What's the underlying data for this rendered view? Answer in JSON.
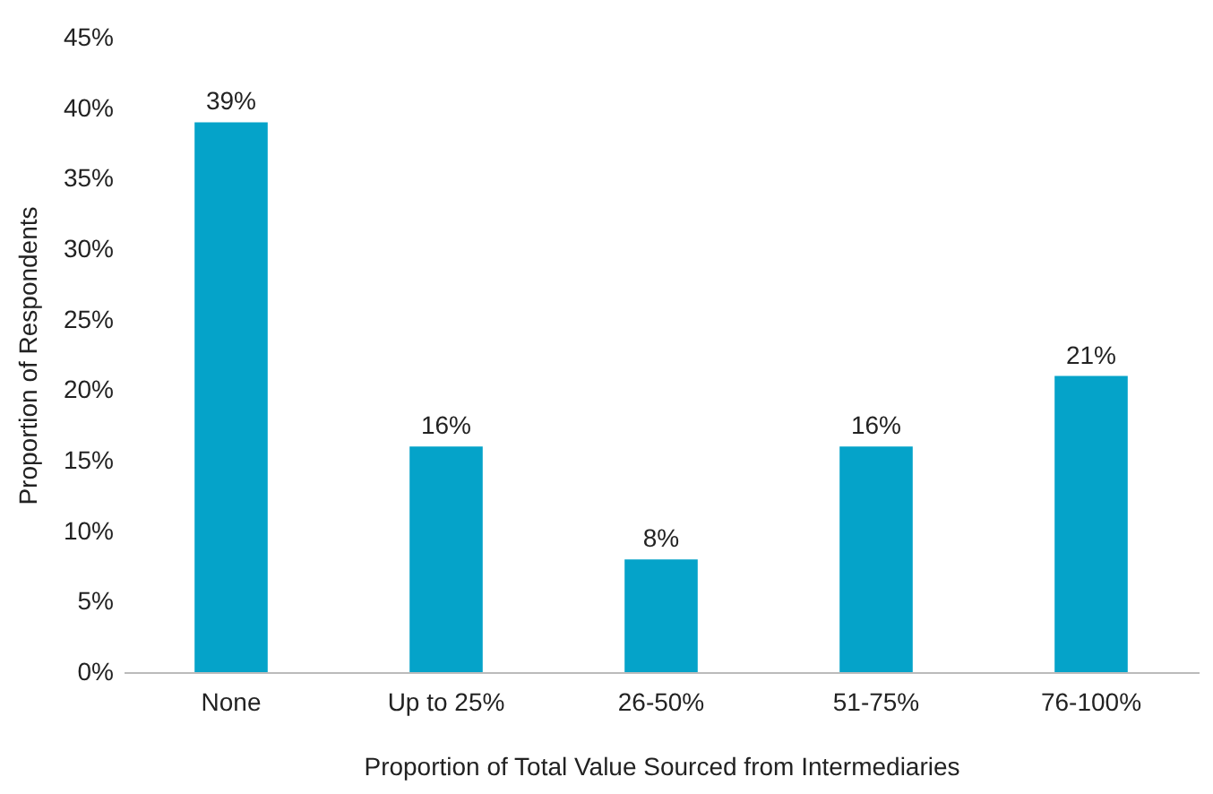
{
  "chart_data": {
    "type": "bar",
    "xlabel": "Proportion of Total Value Sourced from Intermediaries",
    "ylabel": "Proportion of Respondents",
    "categories": [
      "None",
      "Up to 25%",
      "26-50%",
      "51-75%",
      "76-100%"
    ],
    "values": [
      39,
      16,
      8,
      16,
      21
    ],
    "value_labels": [
      "39%",
      "16%",
      "8%",
      "16%",
      "21%"
    ],
    "color": "#05a3c9",
    "ylim": [
      0,
      45
    ],
    "yticks": [
      {
        "value": 0,
        "label": "0%"
      },
      {
        "value": 5,
        "label": "5%"
      },
      {
        "value": 10,
        "label": "10%"
      },
      {
        "value": 15,
        "label": "15%"
      },
      {
        "value": 20,
        "label": "20%"
      },
      {
        "value": 25,
        "label": "25%"
      },
      {
        "value": 30,
        "label": "30%"
      },
      {
        "value": 35,
        "label": "35%"
      },
      {
        "value": 40,
        "label": "40%"
      },
      {
        "value": 45,
        "label": "45%"
      }
    ],
    "grid": false
  }
}
